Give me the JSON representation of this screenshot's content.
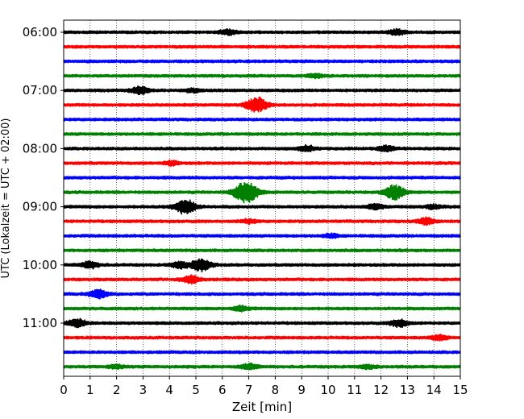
{
  "chart_data": {
    "type": "line",
    "subtype": "seismogram-helicorder",
    "xlabel": "Zeit  [min]",
    "ylabel": "UTC (Lokalzeit = UTC + 02:00)",
    "x_ticks": [
      "0",
      "1",
      "2",
      "3",
      "4",
      "5",
      "6",
      "7",
      "8",
      "9",
      "10",
      "11",
      "12",
      "13",
      "14",
      "15"
    ],
    "xlim": [
      0,
      15
    ],
    "y_tick_labels": [
      "06:00",
      "07:00",
      "08:00",
      "09:00",
      "10:00",
      "11:00"
    ],
    "grid": "vertical dotted at each minute",
    "trace_colors": [
      "#000000",
      "#ff0000",
      "#0000ff",
      "#008000"
    ],
    "traces": [
      {
        "start": "06:00",
        "color": "#000000",
        "events": [
          [
            6.2,
            0.5
          ],
          [
            12.6,
            0.6
          ]
        ]
      },
      {
        "start": "06:15",
        "color": "#ff0000",
        "events": []
      },
      {
        "start": "06:30",
        "color": "#0000ff",
        "events": []
      },
      {
        "start": "06:45",
        "color": "#008000",
        "events": [
          [
            9.5,
            0.4
          ]
        ]
      },
      {
        "start": "07:00",
        "color": "#000000",
        "events": [
          [
            2.9,
            0.8
          ],
          [
            4.9,
            0.4
          ]
        ]
      },
      {
        "start": "07:15",
        "color": "#ff0000",
        "events": [
          [
            7.3,
            1.6
          ]
        ]
      },
      {
        "start": "07:30",
        "color": "#0000ff",
        "events": []
      },
      {
        "start": "07:45",
        "color": "#008000",
        "events": []
      },
      {
        "start": "08:00",
        "color": "#000000",
        "events": [
          [
            9.2,
            0.6
          ],
          [
            12.2,
            0.6
          ]
        ]
      },
      {
        "start": "08:15",
        "color": "#ff0000",
        "events": [
          [
            4.1,
            0.4
          ]
        ]
      },
      {
        "start": "08:30",
        "color": "#0000ff",
        "events": []
      },
      {
        "start": "08:45",
        "color": "#008000",
        "events": [
          [
            6.9,
            2.4
          ],
          [
            12.5,
            1.5
          ]
        ]
      },
      {
        "start": "09:00",
        "color": "#000000",
        "events": [
          [
            4.6,
            1.6
          ],
          [
            11.8,
            0.5
          ],
          [
            14.0,
            0.4
          ]
        ]
      },
      {
        "start": "09:15",
        "color": "#ff0000",
        "events": [
          [
            7.0,
            0.4
          ],
          [
            13.7,
            0.7
          ]
        ]
      },
      {
        "start": "09:30",
        "color": "#0000ff",
        "events": [
          [
            10.1,
            0.4
          ]
        ]
      },
      {
        "start": "09:45",
        "color": "#008000",
        "events": []
      },
      {
        "start": "10:00",
        "color": "#000000",
        "events": [
          [
            1.0,
            0.7
          ],
          [
            4.4,
            0.7
          ],
          [
            5.2,
            1.3
          ]
        ]
      },
      {
        "start": "10:15",
        "color": "#ff0000",
        "events": [
          [
            4.8,
            0.8
          ]
        ]
      },
      {
        "start": "10:30",
        "color": "#0000ff",
        "events": [
          [
            1.3,
            0.9
          ]
        ]
      },
      {
        "start": "10:45",
        "color": "#008000",
        "events": [
          [
            6.7,
            0.5
          ]
        ]
      },
      {
        "start": "11:00",
        "color": "#000000",
        "events": [
          [
            0.5,
            0.9
          ],
          [
            12.7,
            0.8
          ]
        ]
      },
      {
        "start": "11:15",
        "color": "#ff0000",
        "events": [
          [
            14.2,
            0.5
          ]
        ]
      },
      {
        "start": "11:30",
        "color": "#0000ff",
        "events": []
      },
      {
        "start": "11:45",
        "color": "#008000",
        "events": [
          [
            2.0,
            0.4
          ],
          [
            7.0,
            0.6
          ],
          [
            11.5,
            0.4
          ]
        ]
      }
    ]
  }
}
